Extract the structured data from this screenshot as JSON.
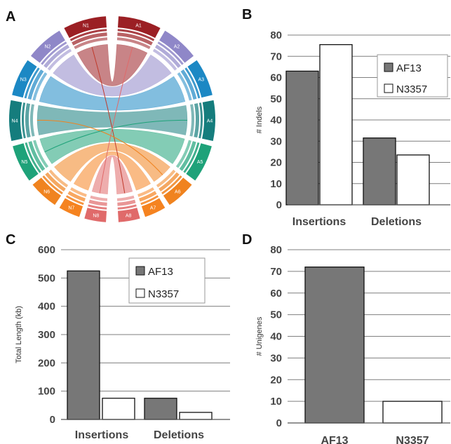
{
  "panel_labels": [
    "A",
    "B",
    "C",
    "D"
  ],
  "circos": {
    "segments": [
      {
        "label": "N1",
        "color": "#9b1f24"
      },
      {
        "label": "N2",
        "color": "#8f87c8"
      },
      {
        "label": "N3",
        "color": "#1c88c4"
      },
      {
        "label": "N4",
        "color": "#157d7d"
      },
      {
        "label": "N5",
        "color": "#1ea279"
      },
      {
        "label": "N6",
        "color": "#f0831f"
      },
      {
        "label": "N7",
        "color": "#f58320"
      },
      {
        "label": "N8",
        "color": "#e06a6a"
      },
      {
        "label": "A8",
        "color": "#e06a6a"
      },
      {
        "label": "A7",
        "color": "#f58320"
      },
      {
        "label": "A6",
        "color": "#f0831f"
      },
      {
        "label": "A5",
        "color": "#1ea279"
      },
      {
        "label": "A4",
        "color": "#157d7d"
      },
      {
        "label": "A3",
        "color": "#1c88c4"
      },
      {
        "label": "A2",
        "color": "#8f87c8"
      },
      {
        "label": "A1",
        "color": "#9b1f24"
      }
    ]
  },
  "chart_data": [
    {
      "panel": "B",
      "type": "bar",
      "categories": [
        "Insertions",
        "Deletions"
      ],
      "series": [
        {
          "name": "AF13",
          "values": [
            63,
            31.5
          ],
          "color": "#777777"
        },
        {
          "name": "N3357",
          "values": [
            75.5,
            23.5
          ],
          "color": "#ffffff"
        }
      ],
      "ylabel": "# Indels",
      "ylim": [
        0,
        80
      ],
      "yticks": [
        "0",
        "10",
        "20",
        "30",
        "40",
        "50",
        "60",
        "70",
        "80"
      ],
      "grid": true,
      "legend": "right"
    },
    {
      "panel": "C",
      "type": "bar",
      "categories": [
        "Insertions",
        "Deletions"
      ],
      "series": [
        {
          "name": "AF13",
          "values": [
            525,
            75
          ],
          "color": "#777777"
        },
        {
          "name": "N3357",
          "values": [
            75,
            25
          ],
          "color": "#ffffff"
        }
      ],
      "ylabel": "Total Length (kb)",
      "ylim": [
        0,
        600
      ],
      "yticks": [
        "0",
        "100",
        "200",
        "300",
        "400",
        "500",
        "600"
      ],
      "grid": true,
      "legend": "top-right"
    },
    {
      "panel": "D",
      "type": "bar",
      "categories": [
        "AF13",
        "N3357"
      ],
      "series": [
        {
          "values": [
            72,
            10
          ],
          "colors": [
            "#777777",
            "#ffffff"
          ]
        }
      ],
      "ylabel": "# Unigenes",
      "ylim": [
        0,
        80
      ],
      "yticks": [
        "0",
        "10",
        "20",
        "30",
        "40",
        "50",
        "60",
        "70",
        "80"
      ],
      "grid": true
    }
  ]
}
